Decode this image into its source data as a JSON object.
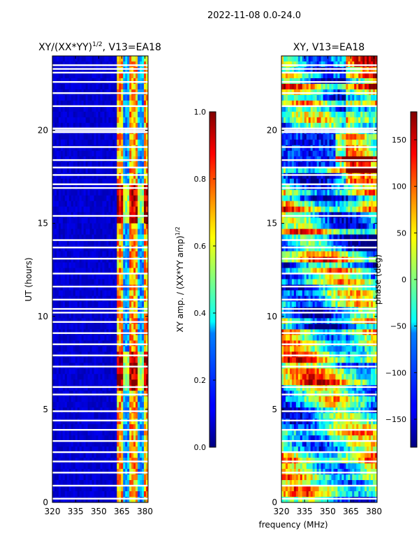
{
  "figure": {
    "suptitle": "2022-11-08 0.0-24.0",
    "shared_xlabel": "frequency (MHz)"
  },
  "chart_data": [
    {
      "type": "heatmap",
      "title": "XY/(XX*YY)",
      "title_exponent": "1/2",
      "title_suffix": ", V13=EA18",
      "xlabel": "frequency (MHz)",
      "ylabel": "UT (hours)",
      "xlim": [
        320,
        382
      ],
      "ylim": [
        0,
        24
      ],
      "xticks": [
        "320",
        "335",
        "350",
        "365",
        "380"
      ],
      "xtick_values": [
        320,
        335,
        350,
        365,
        380
      ],
      "yticks": [
        "0",
        "5",
        "10",
        "15",
        "20"
      ],
      "ytick_values": [
        0,
        5,
        10,
        15,
        20
      ],
      "colormap": "jet",
      "colorbar": {
        "label": "XY amp. / (XX*YY amp)",
        "label_exponent": "1/2",
        "range": [
          0.0,
          1.0
        ],
        "ticks": [
          "0.0",
          "0.2",
          "0.4",
          "0.6",
          "0.8",
          "1.0"
        ],
        "tick_values": [
          0.0,
          0.2,
          0.4,
          0.6,
          0.8,
          1.0
        ]
      },
      "bright_band_mhz": [
        362,
        382
      ],
      "flagged_hours": [
        0.2,
        0.9,
        1.6,
        2.2,
        2.7,
        3.3,
        3.9,
        4.4,
        4.9,
        5.8,
        6.2,
        7.3,
        7.9,
        8.5,
        9.1,
        9.7,
        10.2,
        10.4,
        10.9,
        11.6,
        12.3,
        13.1,
        13.7,
        14.1,
        15.4,
        16.9,
        17.1,
        17.6,
        18.0,
        18.4,
        19.1,
        19.9,
        20.0,
        20.1,
        21.3,
        22.0,
        22.6,
        23.1,
        23.3,
        23.5
      ]
    },
    {
      "type": "heatmap",
      "title": "XY, V13=EA18",
      "xlabel": "frequency (MHz)",
      "ylabel": "",
      "xlim": [
        320,
        382
      ],
      "ylim": [
        0,
        24
      ],
      "xticks": [
        "320",
        "335",
        "350",
        "365",
        "380"
      ],
      "xtick_values": [
        320,
        335,
        350,
        365,
        380
      ],
      "yticks": [
        "0",
        "5",
        "10",
        "15",
        "20"
      ],
      "ytick_values": [
        0,
        5,
        10,
        15,
        20
      ],
      "colormap": "jet",
      "colorbar": {
        "label": "phase (deg)",
        "range": [
          -180,
          180
        ],
        "ticks": [
          "−150",
          "−100",
          "−50",
          "0",
          "50",
          "100",
          "150"
        ],
        "tick_values": [
          -150,
          -100,
          -50,
          0,
          50,
          100,
          150
        ]
      },
      "flagged_hours": [
        0.2,
        0.9,
        1.6,
        2.2,
        2.7,
        3.3,
        3.9,
        4.4,
        4.9,
        5.8,
        6.2,
        7.3,
        7.9,
        8.5,
        9.1,
        9.7,
        10.2,
        10.4,
        10.9,
        11.6,
        12.3,
        13.1,
        13.7,
        14.1,
        15.4,
        16.9,
        17.1,
        17.6,
        18.0,
        18.4,
        19.1,
        19.9,
        20.0,
        20.1,
        21.3,
        22.0,
        22.6,
        23.1,
        23.3,
        23.5
      ]
    }
  ]
}
